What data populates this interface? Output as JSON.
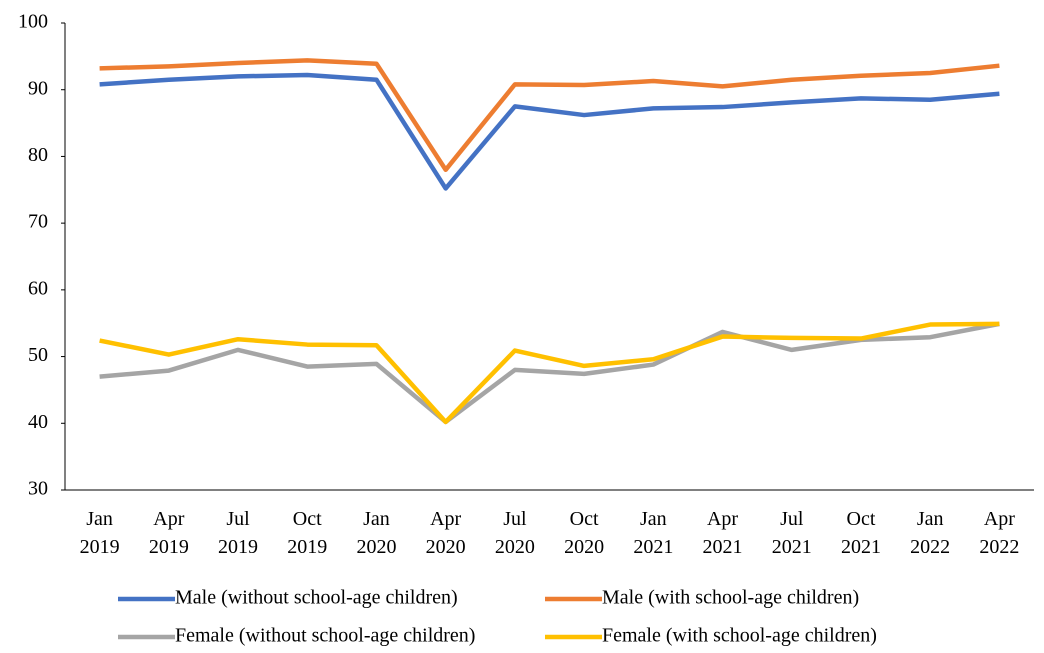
{
  "chart_data": {
    "type": "line",
    "categories": [
      "Jan 2019",
      "Apr 2019",
      "Jul 2019",
      "Oct 2019",
      "Jan 2020",
      "Apr 2020",
      "Jul 2020",
      "Oct 2020",
      "Jan 2021",
      "Apr 2021",
      "Jul 2021",
      "Oct 2021",
      "Jan 2022",
      "Apr 2022"
    ],
    "series": [
      {
        "name": "Male (without school-age children)",
        "color": "#4472c4",
        "values": [
          90.8,
          91.5,
          92.0,
          92.2,
          91.5,
          75.2,
          87.5,
          86.2,
          87.2,
          87.4,
          88.1,
          88.7,
          88.5,
          89.4
        ]
      },
      {
        "name": "Male (with school-age children)",
        "color": "#ed7d31",
        "values": [
          93.2,
          93.5,
          94.0,
          94.4,
          93.9,
          78.0,
          90.8,
          90.7,
          91.3,
          90.5,
          91.5,
          92.1,
          92.5,
          93.6
        ]
      },
      {
        "name": "Female (without school-age children)",
        "color": "#a5a5a5",
        "values": [
          47.0,
          47.9,
          51.0,
          48.5,
          48.9,
          40.2,
          48.0,
          47.4,
          48.8,
          53.7,
          51.0,
          52.5,
          52.9,
          54.9
        ]
      },
      {
        "name": "Female (with school-age children)",
        "color": "#ffc000",
        "values": [
          52.4,
          50.3,
          52.6,
          51.8,
          51.7,
          40.2,
          50.9,
          48.6,
          49.6,
          53.0,
          52.8,
          52.7,
          54.8,
          54.9
        ]
      }
    ],
    "ylim": [
      30,
      100
    ],
    "yticks": [
      30,
      40,
      50,
      60,
      70,
      80,
      90,
      100
    ],
    "grid": false,
    "legend": "bottom"
  }
}
